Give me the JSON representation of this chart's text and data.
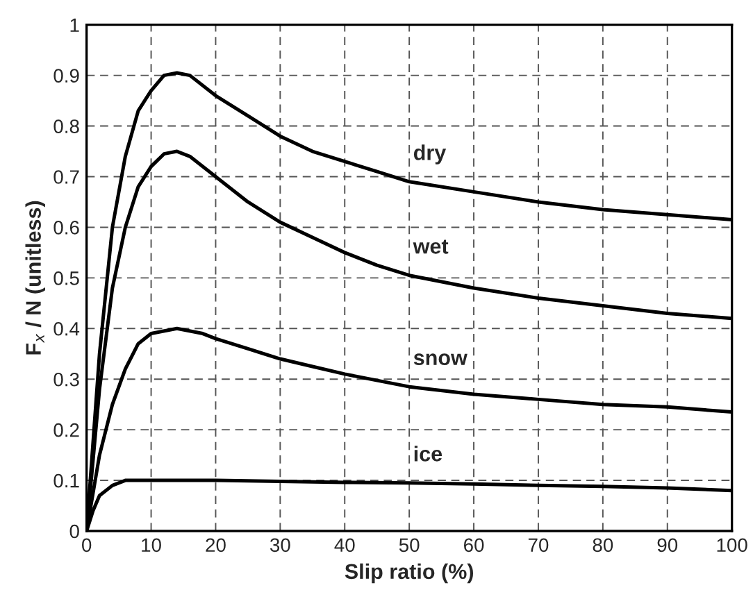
{
  "chart_data": {
    "type": "line",
    "xlabel": "Slip ratio (%)",
    "ylabel": "F$_{x}$ / N (unitless)",
    "xlim": [
      0,
      100
    ],
    "ylim": [
      0,
      1
    ],
    "xticks": [
      0,
      10,
      20,
      30,
      40,
      50,
      60,
      70,
      80,
      90,
      100
    ],
    "yticks": [
      0,
      0.1,
      0.2,
      0.3,
      0.4,
      0.5,
      0.6,
      0.7,
      0.8,
      0.9,
      1
    ],
    "grid": true,
    "line_style": "solid",
    "marker": "none",
    "series": [
      {
        "name": "dry",
        "color": "#000000",
        "x": [
          0,
          2,
          4,
          6,
          8,
          10,
          12,
          14,
          16,
          20,
          25,
          30,
          35,
          40,
          45,
          50,
          60,
          70,
          80,
          90,
          100
        ],
        "values": [
          0,
          0.35,
          0.6,
          0.74,
          0.83,
          0.87,
          0.9,
          0.905,
          0.9,
          0.86,
          0.82,
          0.78,
          0.75,
          0.73,
          0.71,
          0.69,
          0.67,
          0.65,
          0.635,
          0.625,
          0.615
        ]
      },
      {
        "name": "wet",
        "color": "#000000",
        "x": [
          0,
          2,
          4,
          6,
          8,
          10,
          12,
          14,
          16,
          20,
          25,
          30,
          35,
          40,
          45,
          50,
          60,
          70,
          80,
          90,
          100
        ],
        "values": [
          0,
          0.28,
          0.48,
          0.6,
          0.68,
          0.72,
          0.745,
          0.75,
          0.74,
          0.7,
          0.65,
          0.61,
          0.58,
          0.55,
          0.525,
          0.505,
          0.48,
          0.46,
          0.445,
          0.43,
          0.42
        ]
      },
      {
        "name": "snow",
        "color": "#000000",
        "x": [
          0,
          2,
          4,
          6,
          8,
          10,
          14,
          18,
          20,
          25,
          30,
          35,
          40,
          50,
          60,
          70,
          80,
          90,
          100
        ],
        "values": [
          0,
          0.15,
          0.25,
          0.32,
          0.37,
          0.39,
          0.4,
          0.39,
          0.38,
          0.36,
          0.34,
          0.325,
          0.31,
          0.285,
          0.27,
          0.26,
          0.25,
          0.245,
          0.235
        ]
      },
      {
        "name": "ice",
        "color": "#000000",
        "x": [
          0,
          1,
          2,
          4,
          6,
          10,
          20,
          30,
          40,
          50,
          60,
          70,
          80,
          90,
          100
        ],
        "values": [
          0,
          0.04,
          0.07,
          0.09,
          0.1,
          0.1,
          0.1,
          0.098,
          0.096,
          0.095,
          0.093,
          0.09,
          0.088,
          0.085,
          0.08
        ]
      }
    ]
  }
}
